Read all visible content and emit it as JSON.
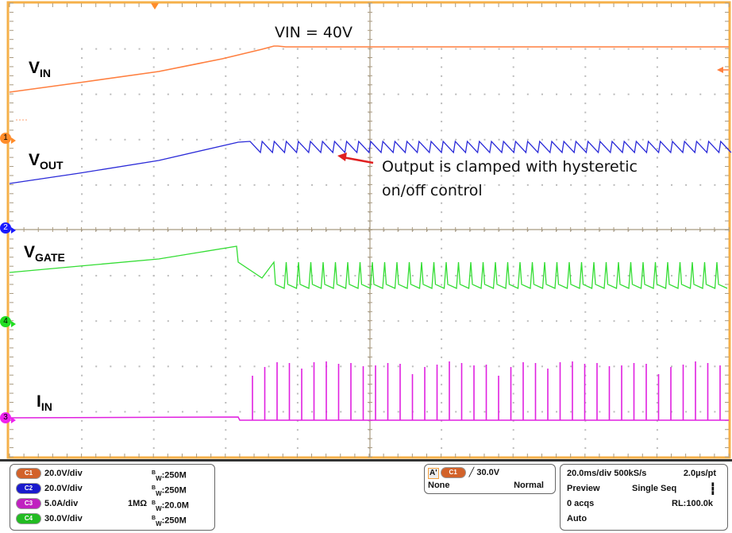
{
  "plot": {
    "annotations": {
      "vin_label": "V",
      "vin_sub": "IN",
      "vout_label": "V",
      "vout_sub": "OUT",
      "vgate_label": "V",
      "vgate_sub": "GATE",
      "iin_label": "I",
      "iin_sub": "IN",
      "vin_value": "VIN = 40V",
      "note_line1": "Output is clamped with hysteretic",
      "note_line2": "on/off control"
    },
    "channel_markers": [
      {
        "id": "1",
        "color": "#ff8c2a"
      },
      {
        "id": "2",
        "color": "#1a1aff"
      },
      {
        "id": "4",
        "color": "#22dd22"
      },
      {
        "id": "3",
        "color": "#ee22ee"
      }
    ],
    "colors": {
      "ch1": "#ff7f3f",
      "ch2": "#2a2ad8",
      "ch3": "#e020e0",
      "ch4": "#33dd33",
      "frame": "#f5b04a",
      "arrow": "#e02020"
    }
  },
  "channels": [
    {
      "name": "C1",
      "scale": "20.0V/div",
      "impedance": "",
      "bw": "250M",
      "color": "#d2622a"
    },
    {
      "name": "C2",
      "scale": "20.0V/div",
      "impedance": "",
      "bw": "250M",
      "color": "#1a1acc"
    },
    {
      "name": "C3",
      "scale": "5.0A/div",
      "impedance": "1MΩ",
      "bw": "20.0M",
      "color": "#c020c0"
    },
    {
      "name": "C4",
      "scale": "30.0V/div",
      "impedance": "",
      "bw": "250M",
      "color": "#22bb22"
    }
  ],
  "bw_prefix": "B",
  "bw_sub": "W",
  "trigger": {
    "mode_badge": "A'",
    "source": "C1",
    "slope_icon": "rising-edge",
    "level": "30.0V",
    "coupling": "None",
    "mode": "Normal"
  },
  "acquisition": {
    "timebase": "20.0ms/div",
    "sample_rate": "500kS/s",
    "resolution": "2.0µs/pt",
    "state": "Preview",
    "sequence": "Single Seq",
    "acqs": "0 acqs",
    "record_length": "RL:100.0k",
    "trigger_mode": "Auto"
  }
}
